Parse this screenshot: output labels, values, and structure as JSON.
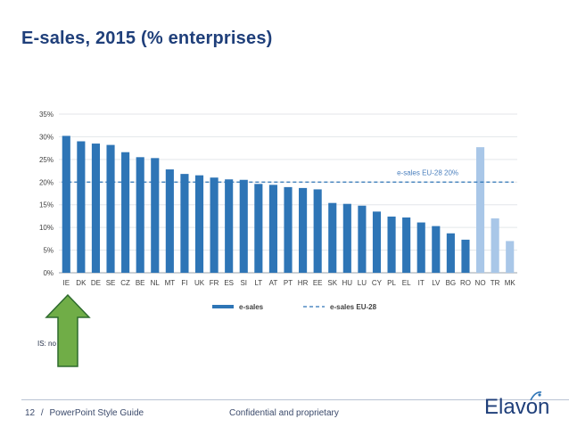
{
  "slide": {
    "title": "E-sales, 2015 (% enterprises)",
    "footer_page": "12",
    "footer_sep": "/",
    "footer_guide": "PowerPoint Style Guide",
    "footer_center": "Confidential and proprietary",
    "note": "IS: no data",
    "brand": "Elavon",
    "colors": {
      "title": "#1f3f7a",
      "bar": "#2e75b6",
      "bar_light": "#a9c7e8",
      "ref_line": "#2e75b6",
      "arrow": "#70ad47"
    }
  },
  "chart_data": {
    "type": "bar",
    "title": "",
    "xlabel": "",
    "ylabel": "",
    "ylim": [
      0,
      35
    ],
    "yticks": [
      0,
      5,
      10,
      15,
      20,
      25,
      30,
      35
    ],
    "ytick_labels": [
      "0%",
      "5%",
      "10%",
      "15%",
      "20%",
      "25%",
      "30%",
      "35%"
    ],
    "grid": true,
    "categories": [
      "IE",
      "DK",
      "DE",
      "SE",
      "CZ",
      "BE",
      "NL",
      "MT",
      "FI",
      "UK",
      "FR",
      "ES",
      "SI",
      "LT",
      "AT",
      "PT",
      "HR",
      "EE",
      "SK",
      "HU",
      "LU",
      "CY",
      "PL",
      "EL",
      "IT",
      "LV",
      "BG",
      "RO",
      "NO",
      "TR",
      "MK"
    ],
    "series": [
      {
        "name": "e-sales",
        "values": [
          30.2,
          29.0,
          28.5,
          28.2,
          26.6,
          25.5,
          25.3,
          22.8,
          21.8,
          21.5,
          21.0,
          20.6,
          20.5,
          19.6,
          19.4,
          18.9,
          18.7,
          18.4,
          15.4,
          15.2,
          14.8,
          13.5,
          12.4,
          12.2,
          11.1,
          10.3,
          8.7,
          7.3,
          27.7,
          12.0,
          7.0
        ],
        "highlight": [
          "EU",
          "EU",
          "EU",
          "EU",
          "EU",
          "EU",
          "EU",
          "EU",
          "EU",
          "EU",
          "EU",
          "EU",
          "EU",
          "EU",
          "EU",
          "EU",
          "EU",
          "EU",
          "EU",
          "EU",
          "EU",
          "EU",
          "EU",
          "EU",
          "EU",
          "EU",
          "EU",
          "EU",
          "non-EU",
          "non-EU",
          "non-EU"
        ]
      }
    ],
    "reference": {
      "name": "e-sales EU-28",
      "value": 20,
      "label": "e-sales EU-28 20%"
    },
    "legend": [
      "e-sales",
      "e-sales EU-28"
    ],
    "legend_position": "bottom"
  }
}
